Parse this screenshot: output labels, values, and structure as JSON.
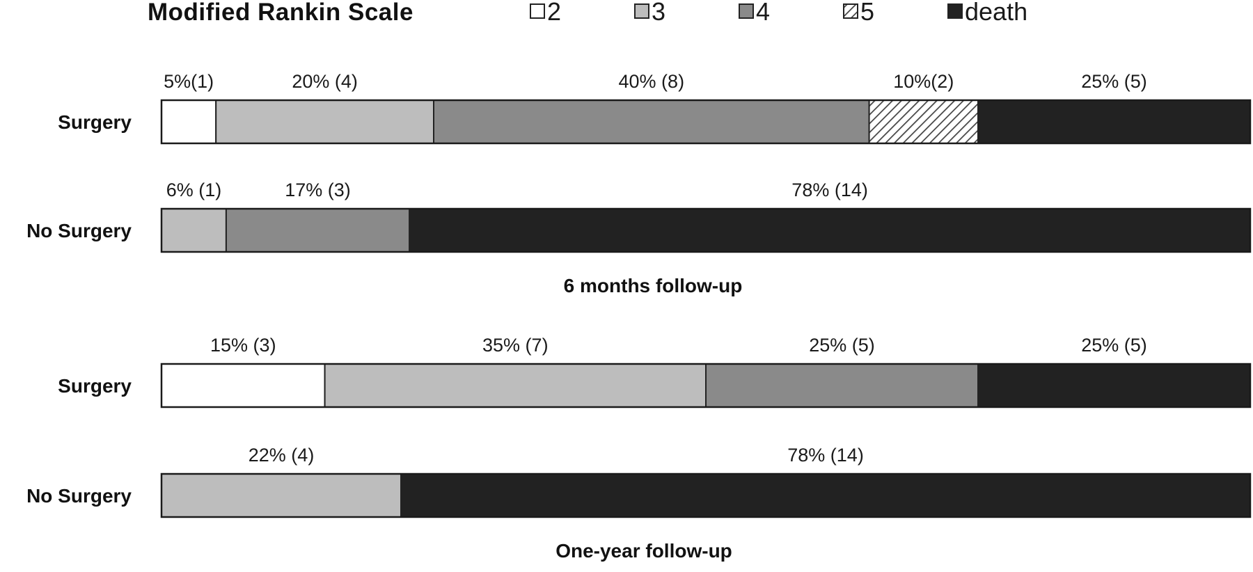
{
  "colors": {
    "2": "#ffffff",
    "3": "#bdbdbd",
    "4": "#8a8a8a",
    "5": "hatch",
    "death": "#222222"
  },
  "chart_data": {
    "type": "bar",
    "orientation": "horizontal",
    "stacked": true,
    "legend": {
      "title": "Modified Rankin Scale",
      "placement": "top",
      "entries": [
        {
          "key": "2",
          "label": "2"
        },
        {
          "key": "3",
          "label": "3"
        },
        {
          "key": "4",
          "label": "4"
        },
        {
          "key": "5",
          "label": "5"
        },
        {
          "key": "death",
          "label": "death"
        }
      ]
    },
    "panels": [
      {
        "title": "6 months follow-up",
        "rows": [
          {
            "label": "Surgery",
            "segments": [
              {
                "key": "2",
                "value": 5,
                "text": "5%(1)"
              },
              {
                "key": "3",
                "value": 20,
                "text": "20% (4)"
              },
              {
                "key": "4",
                "value": 40,
                "text": "40% (8)"
              },
              {
                "key": "5",
                "value": 10,
                "text": "10%(2)"
              },
              {
                "key": "death",
                "value": 25,
                "text": "25% (5)"
              }
            ]
          },
          {
            "label": "No Surgery",
            "segments": [
              {
                "key": "3",
                "value": 6,
                "text": "6% (1)"
              },
              {
                "key": "4",
                "value": 17,
                "text": "17% (3)"
              },
              {
                "key": "death",
                "value": 78,
                "text": "78% (14)"
              }
            ]
          }
        ]
      },
      {
        "title": "One-year follow-up",
        "rows": [
          {
            "label": "Surgery",
            "segments": [
              {
                "key": "2",
                "value": 15,
                "text": "15% (3)"
              },
              {
                "key": "3",
                "value": 35,
                "text": "35% (7)"
              },
              {
                "key": "4",
                "value": 25,
                "text": "25% (5)"
              },
              {
                "key": "death",
                "value": 25,
                "text": "25% (5)"
              }
            ]
          },
          {
            "label": "No Surgery",
            "segments": [
              {
                "key": "3",
                "value": 22,
                "text": "22% (4)"
              },
              {
                "key": "death",
                "value": 78,
                "text": "78% (14)"
              }
            ]
          }
        ]
      }
    ]
  }
}
